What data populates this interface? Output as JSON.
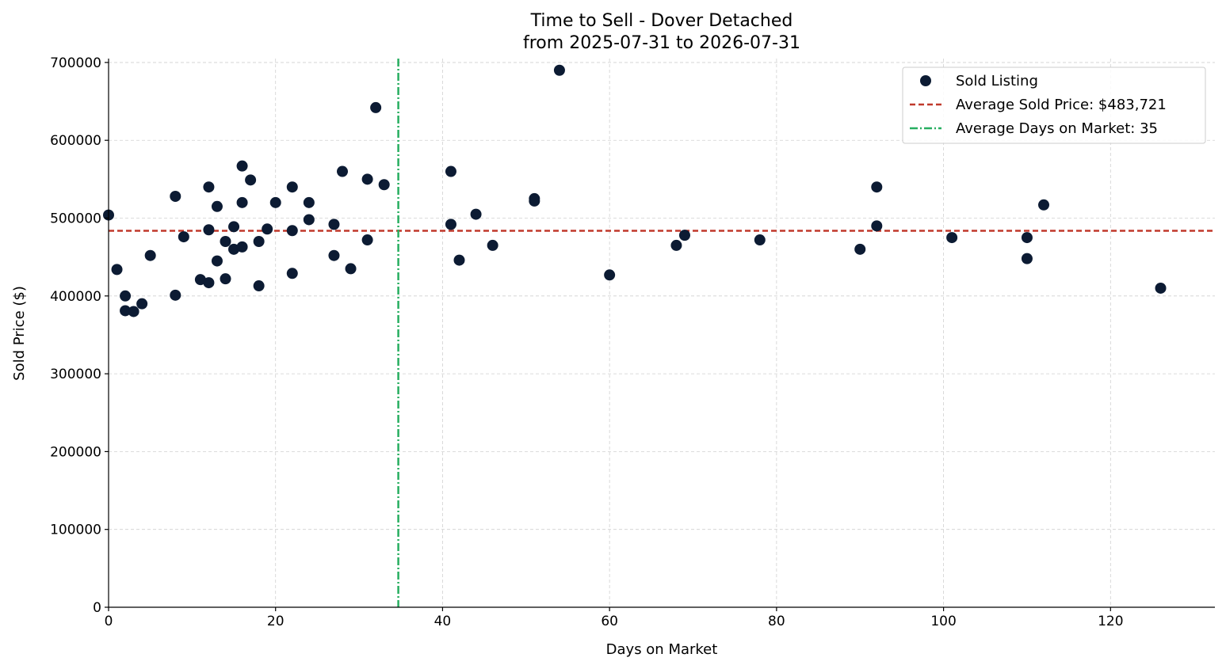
{
  "chart_data": {
    "type": "scatter",
    "title": "Time to Sell - Dover Detached",
    "subtitle": "from 2025-07-31 to 2026-07-31",
    "xlabel": "Days on Market",
    "ylabel": "Sold Price ($)",
    "xlim": [
      0,
      132.5
    ],
    "ylim": [
      0,
      705000
    ],
    "x_ticks": [
      "0",
      "20",
      "40",
      "60",
      "80",
      "100",
      "120"
    ],
    "y_ticks": [
      "0",
      "100000",
      "200000",
      "300000",
      "400000",
      "500000",
      "600000",
      "700000"
    ],
    "grid": true,
    "legend_position": "top-right",
    "colors": {
      "points": "#0c1b33",
      "avg_price_line": "#c0392b",
      "avg_days_line": "#27ae60"
    },
    "series": [
      {
        "name": "Sold Listing",
        "points": [
          [
            0,
            504000
          ],
          [
            1,
            434000
          ],
          [
            2,
            400000
          ],
          [
            2,
            381000
          ],
          [
            3,
            380000
          ],
          [
            4,
            390000
          ],
          [
            5,
            452000
          ],
          [
            8,
            528000
          ],
          [
            8,
            401000
          ],
          [
            9,
            476000
          ],
          [
            11,
            421000
          ],
          [
            12,
            540000
          ],
          [
            12,
            485000
          ],
          [
            12,
            417000
          ],
          [
            13,
            515000
          ],
          [
            13,
            445000
          ],
          [
            14,
            470000
          ],
          [
            14,
            422000
          ],
          [
            15,
            489000
          ],
          [
            15,
            460000
          ],
          [
            16,
            567000
          ],
          [
            16,
            520000
          ],
          [
            16,
            463000
          ],
          [
            17,
            549000
          ],
          [
            18,
            470000
          ],
          [
            18,
            413000
          ],
          [
            19,
            486000
          ],
          [
            20,
            520000
          ],
          [
            22,
            540000
          ],
          [
            22,
            484000
          ],
          [
            22,
            429000
          ],
          [
            24,
            520000
          ],
          [
            24,
            498000
          ],
          [
            27,
            492000
          ],
          [
            27,
            452000
          ],
          [
            28,
            560000
          ],
          [
            29,
            435000
          ],
          [
            31,
            550000
          ],
          [
            31,
            472000
          ],
          [
            32,
            642000
          ],
          [
            33,
            543000
          ],
          [
            41,
            560000
          ],
          [
            41,
            492000
          ],
          [
            42,
            446000
          ],
          [
            44,
            505000
          ],
          [
            46,
            465000
          ],
          [
            51,
            525000
          ],
          [
            51,
            522000
          ],
          [
            54,
            690000
          ],
          [
            60,
            427000
          ],
          [
            68,
            465000
          ],
          [
            69,
            478000
          ],
          [
            78,
            472000
          ],
          [
            90,
            460000
          ],
          [
            92,
            540000
          ],
          [
            92,
            490000
          ],
          [
            101,
            475000
          ],
          [
            110,
            475000
          ],
          [
            110,
            448000
          ],
          [
            112,
            517000
          ],
          [
            126,
            410000
          ]
        ]
      }
    ],
    "reference_lines": [
      {
        "name": "Average Sold Price: $483,721",
        "axis": "y",
        "value": 483721,
        "style": "dashed"
      },
      {
        "name": "Average Days on Market: 35",
        "axis": "x",
        "value": 34.7,
        "style": "dash-dot"
      }
    ]
  }
}
